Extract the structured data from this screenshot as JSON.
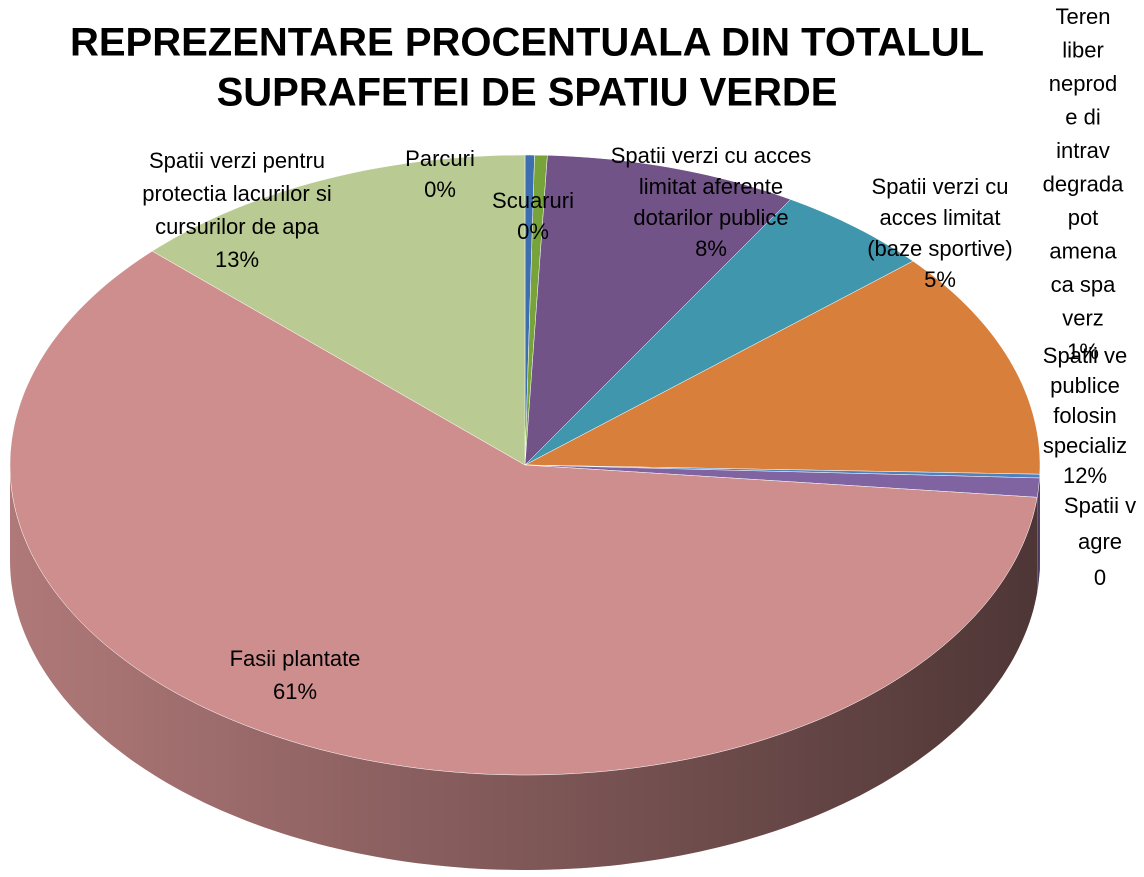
{
  "chart_data": {
    "type": "pie3d",
    "title_lines": [
      "REPREZENTARE PROCENTUALA DIN TOTALUL",
      "SUPRAFETEI DE SPATIU VERDE"
    ],
    "categories": [
      [
        "Parcuri"
      ],
      [
        "Scuaruri"
      ],
      [
        "Spatii verzi cu acces",
        "limitat aferente",
        "dotarilor publice"
      ],
      [
        "Spatii verzi cu",
        "acces limitat",
        "(baze sportive)"
      ],
      [
        "Spatii ve",
        "publice",
        "folosin",
        "specializ"
      ],
      [
        "Spatii v",
        "agre"
      ],
      [
        "Teren",
        "liber",
        "neprod",
        "e di",
        "intrav",
        "degrada",
        "pot",
        "amena",
        "ca spa",
        "verz"
      ],
      [
        "Fasii plantate"
      ],
      [
        "Spatii verzi pentru",
        "protectia lacurilor si",
        "cursurilor de apa"
      ]
    ],
    "values": [
      0.3,
      0.4,
      8,
      5,
      12,
      0.2,
      1,
      61,
      13
    ],
    "value_labels": [
      "0%",
      "0%",
      "8%",
      "5%",
      "12%",
      "0",
      "1%",
      "61%",
      "13%"
    ],
    "colors": [
      "#3d6fb0",
      "#77a33a",
      "#725388",
      "#4096ad",
      "#d8803b",
      "#4f81bd",
      "#8064a2",
      "#cf8e8e",
      "#b9cb92"
    ]
  }
}
